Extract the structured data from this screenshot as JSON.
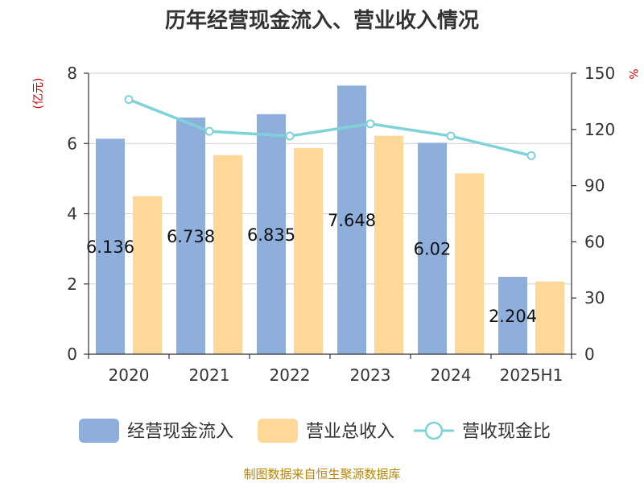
{
  "chart_data": {
    "type": "bar",
    "title": "历年经营现金流入、营业收入情况",
    "categories": [
      "2020",
      "2021",
      "2022",
      "2023",
      "2024",
      "2025H1"
    ],
    "left_axis": {
      "unit": "(亿元)",
      "ylim": [
        0,
        8
      ],
      "ticks": [
        0,
        2,
        4,
        6,
        8
      ]
    },
    "right_axis": {
      "unit": "%",
      "ylim": [
        0,
        150
      ],
      "ticks": [
        0,
        30,
        60,
        90,
        120,
        150
      ]
    },
    "series": [
      {
        "name": "经营现金流入",
        "type": "bar",
        "axis": "left",
        "color": "#8eaedc",
        "values": [
          6.136,
          6.738,
          6.835,
          7.648,
          6.02,
          2.204
        ],
        "labels": [
          "6.136",
          "6.738",
          "6.835",
          "7.648",
          "6.02",
          "2.204"
        ]
      },
      {
        "name": "营业总收入",
        "type": "bar",
        "axis": "left",
        "color": "#fdd898",
        "values": [
          4.5,
          5.67,
          5.87,
          6.22,
          5.15,
          2.07
        ]
      },
      {
        "name": "营收现金比",
        "type": "line",
        "axis": "right",
        "color": "#7fd3d8",
        "values": [
          136,
          119,
          116.5,
          123,
          116.5,
          106
        ]
      }
    ],
    "grid": "horizontal",
    "legend": "bottom"
  },
  "source": "制图数据来自恒生聚源数据库"
}
